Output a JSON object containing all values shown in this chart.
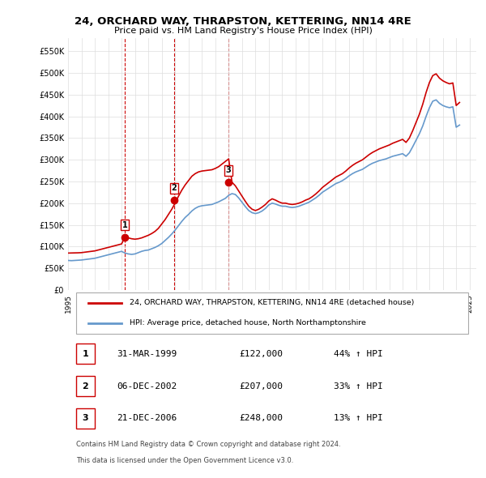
{
  "title": "24, ORCHARD WAY, THRAPSTON, KETTERING, NN14 4RE",
  "subtitle": "Price paid vs. HM Land Registry's House Price Index (HPI)",
  "property_label": "24, ORCHARD WAY, THRAPSTON, KETTERING, NN14 4RE (detached house)",
  "hpi_label": "HPI: Average price, detached house, North Northamptonshire",
  "footer1": "Contains HM Land Registry data © Crown copyright and database right 2024.",
  "footer2": "This data is licensed under the Open Government Licence v3.0.",
  "purchases": [
    {
      "num": 1,
      "date": "31-MAR-1999",
      "price": 122000,
      "pct": "44%",
      "dir": "↑"
    },
    {
      "num": 2,
      "date": "06-DEC-2002",
      "price": 207000,
      "pct": "33%",
      "dir": "↑"
    },
    {
      "num": 3,
      "date": "21-DEC-2006",
      "price": 248000,
      "pct": "13%",
      "dir": "↑"
    }
  ],
  "purchase_years": [
    1999.25,
    2002.92,
    2006.97
  ],
  "purchase_prices": [
    122000,
    207000,
    248000
  ],
  "vline_color": "#cc0000",
  "vline_style": "--",
  "marker_color": "#cc0000",
  "property_line_color": "#cc0000",
  "hpi_line_color": "#6699cc",
  "background_color": "#ffffff",
  "grid_color": "#dddddd",
  "ylim": [
    0,
    580000
  ],
  "yticks": [
    0,
    50000,
    100000,
    150000,
    200000,
    250000,
    300000,
    350000,
    400000,
    450000,
    500000,
    550000
  ],
  "hpi_data": {
    "years": [
      1995.0,
      1995.25,
      1995.5,
      1995.75,
      1996.0,
      1996.25,
      1996.5,
      1996.75,
      1997.0,
      1997.25,
      1997.5,
      1997.75,
      1998.0,
      1998.25,
      1998.5,
      1998.75,
      1999.0,
      1999.25,
      1999.5,
      1999.75,
      2000.0,
      2000.25,
      2000.5,
      2000.75,
      2001.0,
      2001.25,
      2001.5,
      2001.75,
      2002.0,
      2002.25,
      2002.5,
      2002.75,
      2003.0,
      2003.25,
      2003.5,
      2003.75,
      2004.0,
      2004.25,
      2004.5,
      2004.75,
      2005.0,
      2005.25,
      2005.5,
      2005.75,
      2006.0,
      2006.25,
      2006.5,
      2006.75,
      2007.0,
      2007.25,
      2007.5,
      2007.75,
      2008.0,
      2008.25,
      2008.5,
      2008.75,
      2009.0,
      2009.25,
      2009.5,
      2009.75,
      2010.0,
      2010.25,
      2010.5,
      2010.75,
      2011.0,
      2011.25,
      2011.5,
      2011.75,
      2012.0,
      2012.25,
      2012.5,
      2012.75,
      2013.0,
      2013.25,
      2013.5,
      2013.75,
      2014.0,
      2014.25,
      2014.5,
      2014.75,
      2015.0,
      2015.25,
      2015.5,
      2015.75,
      2016.0,
      2016.25,
      2016.5,
      2016.75,
      2017.0,
      2017.25,
      2017.5,
      2017.75,
      2018.0,
      2018.25,
      2018.5,
      2018.75,
      2019.0,
      2019.25,
      2019.5,
      2019.75,
      2020.0,
      2020.25,
      2020.5,
      2020.75,
      2021.0,
      2021.25,
      2021.5,
      2021.75,
      2022.0,
      2022.25,
      2022.5,
      2022.75,
      2023.0,
      2023.25,
      2023.5,
      2023.75,
      2024.0,
      2024.25
    ],
    "values": [
      68000,
      67500,
      68000,
      68500,
      69000,
      70000,
      71000,
      72000,
      73000,
      75000,
      77000,
      79000,
      81000,
      83000,
      85000,
      87000,
      89000,
      85000,
      83000,
      82000,
      83000,
      86000,
      89000,
      91000,
      92000,
      95000,
      98000,
      102000,
      107000,
      114000,
      121000,
      129000,
      138000,
      148000,
      158000,
      167000,
      174000,
      182000,
      188000,
      192000,
      194000,
      195000,
      196000,
      197000,
      200000,
      203000,
      207000,
      211000,
      218000,
      222000,
      220000,
      212000,
      202000,
      192000,
      183000,
      178000,
      176000,
      178000,
      182000,
      188000,
      196000,
      200000,
      198000,
      195000,
      193000,
      193000,
      191000,
      190000,
      191000,
      193000,
      196000,
      199000,
      202000,
      207000,
      212000,
      218000,
      225000,
      230000,
      235000,
      240000,
      245000,
      248000,
      252000,
      257000,
      263000,
      268000,
      272000,
      275000,
      278000,
      283000,
      288000,
      292000,
      295000,
      298000,
      300000,
      302000,
      305000,
      308000,
      310000,
      312000,
      314000,
      308000,
      316000,
      330000,
      345000,
      360000,
      378000,
      400000,
      420000,
      435000,
      438000,
      430000,
      425000,
      422000,
      420000,
      422000,
      375000,
      380000
    ],
    "property_values": [
      85000,
      85200,
      85400,
      85600,
      86000,
      87000,
      88000,
      89000,
      90000,
      92000,
      94000,
      96000,
      98000,
      100000,
      102000,
      104000,
      106000,
      122000,
      120000,
      118000,
      117000,
      118000,
      120000,
      123000,
      126000,
      130000,
      135000,
      142000,
      152000,
      162000,
      174000,
      186000,
      200000,
      216000,
      230000,
      242000,
      252000,
      262000,
      268000,
      272000,
      274000,
      275000,
      276000,
      277000,
      280000,
      284000,
      290000,
      296000,
      302000,
      248000,
      240000,
      228000,
      216000,
      204000,
      193000,
      186000,
      183000,
      186000,
      191000,
      197000,
      205000,
      210000,
      207000,
      203000,
      200000,
      200000,
      198000,
      197000,
      198000,
      200000,
      203000,
      207000,
      210000,
      215000,
      221000,
      228000,
      236000,
      242000,
      248000,
      254000,
      260000,
      264000,
      268000,
      274000,
      281000,
      287000,
      292000,
      296000,
      300000,
      306000,
      312000,
      317000,
      321000,
      325000,
      328000,
      331000,
      334000,
      338000,
      341000,
      344000,
      347000,
      340000,
      350000,
      367000,
      386000,
      405000,
      428000,
      455000,
      478000,
      494000,
      498000,
      488000,
      482000,
      478000,
      475000,
      477000,
      425000,
      432000
    ]
  }
}
